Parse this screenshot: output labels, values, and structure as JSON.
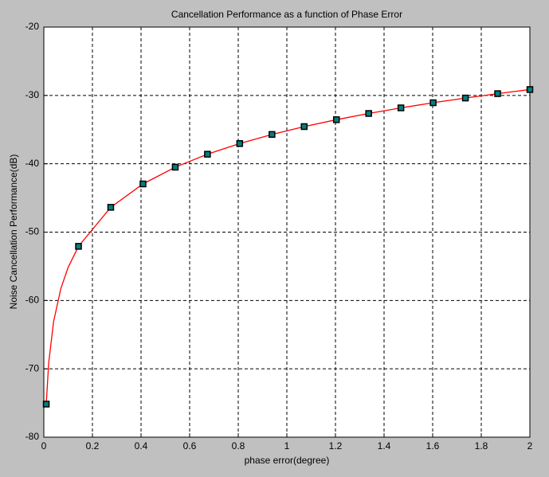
{
  "chart_data": {
    "type": "line",
    "title": "Cancellation Performance as a function of Phase Error",
    "x_label": "phase error(degree)",
    "y_label": "Noise Cancellation Performance(dB)",
    "xlim": [
      0,
      2
    ],
    "ylim": [
      -80,
      -20
    ],
    "xticks": [
      0,
      0.2,
      0.4,
      0.6,
      0.8,
      1,
      1.2,
      1.4,
      1.6,
      1.8,
      2
    ],
    "yticks": [
      -80,
      -70,
      -60,
      -50,
      -40,
      -30,
      -20
    ],
    "grid": true,
    "series": [
      {
        "color": "#ff0000",
        "marker": "none",
        "x": [
          0.01,
          0.02,
          0.04,
          0.07,
          0.1,
          0.1427,
          0.2753,
          0.408,
          0.5407,
          0.6733,
          0.806,
          0.9387,
          1.0713,
          1.204,
          1.3367,
          1.4693,
          1.602,
          1.7347,
          1.8673,
          2.0
        ],
        "values": [
          -75.16,
          -69.14,
          -63.12,
          -58.26,
          -55.16,
          -52.08,
          -46.37,
          -42.95,
          -40.5,
          -38.6,
          -37.04,
          -35.71,
          -34.56,
          -33.55,
          -32.64,
          -31.82,
          -31.07,
          -30.38,
          -29.74,
          -29.14
        ]
      },
      {
        "color": "#008080",
        "marker": "square",
        "x": [
          0.01,
          0.1427,
          0.2753,
          0.408,
          0.5407,
          0.6733,
          0.806,
          0.9387,
          1.0713,
          1.204,
          1.3367,
          1.4693,
          1.602,
          1.7347,
          1.8673,
          2.0
        ],
        "values": [
          -75.16,
          -52.08,
          -46.37,
          -42.95,
          -40.5,
          -38.6,
          -37.04,
          -35.71,
          -34.56,
          -33.55,
          -32.64,
          -31.82,
          -31.07,
          -30.38,
          -29.74,
          -29.14
        ]
      }
    ]
  }
}
